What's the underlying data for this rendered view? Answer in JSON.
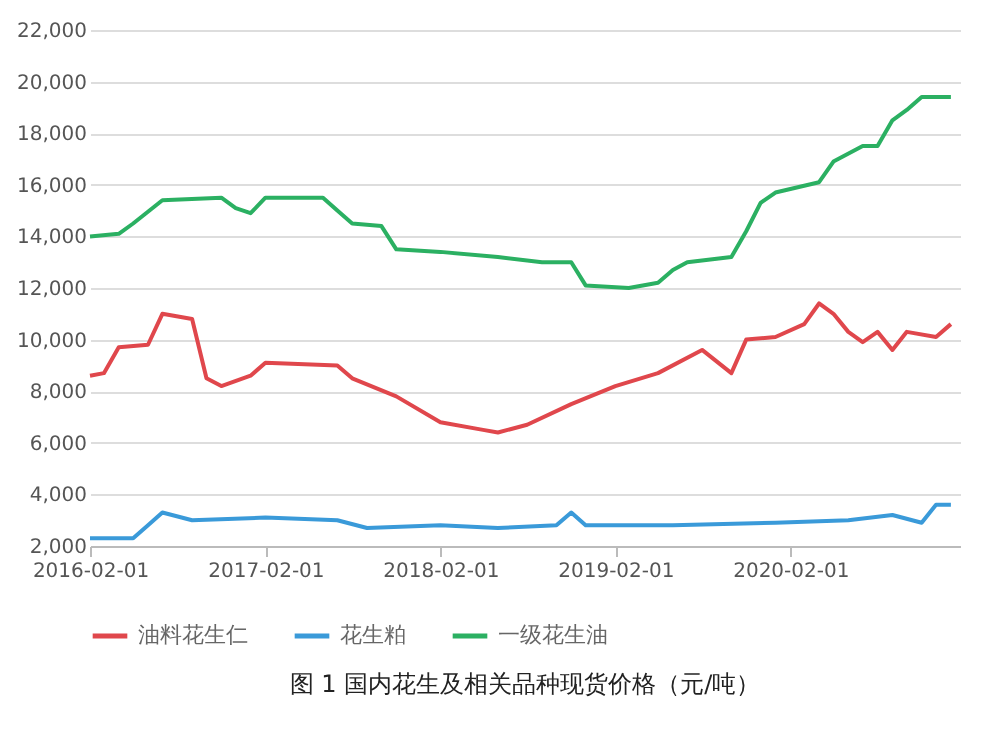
{
  "chart_data": {
    "type": "line",
    "annotations": [
      "图 1 国内花生及相关品种现货价格（元/吨）"
    ],
    "xlim": [
      "2016-02-01",
      "2021-01-20"
    ],
    "xticks": [
      "2016-02-01",
      "2017-02-01",
      "2018-02-01",
      "2019-02-01",
      "2020-02-01"
    ],
    "ylim": [
      2000,
      22000
    ],
    "yticks": [
      {
        "value": 2000,
        "label": "2,000"
      },
      {
        "value": 4000,
        "label": "4,000"
      },
      {
        "value": 6000,
        "label": "6,000"
      },
      {
        "value": 8000,
        "label": "8,000"
      },
      {
        "value": 10000,
        "label": "10,000"
      },
      {
        "value": 12000,
        "label": "12,000"
      },
      {
        "value": 14000,
        "label": "14,000"
      },
      {
        "value": 16000,
        "label": "16,000"
      },
      {
        "value": 18000,
        "label": "18,000"
      },
      {
        "value": 20000,
        "label": "20,000"
      },
      {
        "value": 22000,
        "label": "22,000"
      }
    ],
    "grid": "y",
    "legend": "bottom",
    "line_style": "solid",
    "marker": "none",
    "series": [
      {
        "name": "油料花生仁",
        "color": "#e0474c",
        "x": [
          "2016-02",
          "2016-03",
          "2016-04",
          "2016-06",
          "2016-07",
          "2016-09",
          "2016-10",
          "2016-11",
          "2017-01",
          "2017-02",
          "2017-07",
          "2017-08",
          "2017-11",
          "2018-02",
          "2018-05",
          "2018-06",
          "2018-08",
          "2018-11",
          "2019-02",
          "2019-05",
          "2019-08",
          "2019-10",
          "2019-11",
          "2020-01",
          "2020-03",
          "2020-04",
          "2020-05",
          "2020-06",
          "2020-07",
          "2020-08",
          "2020-09",
          "2020-10",
          "2020-12",
          "2021-01"
        ],
        "values": [
          8600,
          8700,
          9700,
          9800,
          11000,
          10800,
          8500,
          8200,
          8600,
          9100,
          9000,
          8500,
          7800,
          6800,
          6500,
          6400,
          6700,
          7500,
          8200,
          8700,
          9600,
          8700,
          10000,
          10100,
          10600,
          11400,
          11000,
          10300,
          9900,
          10300,
          9600,
          10300,
          10100,
          10600
        ]
      },
      {
        "name": "花生粕",
        "color": "#3a9ad9",
        "x": [
          "2016-02",
          "2016-05",
          "2016-06",
          "2016-07",
          "2016-09",
          "2017-02",
          "2017-07",
          "2017-09",
          "2018-02",
          "2018-06",
          "2018-10",
          "2018-11",
          "2018-12",
          "2019-06",
          "2020-01",
          "2020-06",
          "2020-09",
          "2020-11",
          "2020-12",
          "2021-01"
        ],
        "values": [
          2300,
          2300,
          2800,
          3300,
          3000,
          3100,
          3000,
          2700,
          2800,
          2700,
          2800,
          3300,
          2800,
          2800,
          2900,
          3000,
          3200,
          2900,
          3600,
          3600
        ]
      },
      {
        "name": "一级花生油",
        "color": "#2bb062",
        "x": [
          "2016-02",
          "2016-04",
          "2016-05",
          "2016-07",
          "2016-11",
          "2016-12",
          "2017-01",
          "2017-02",
          "2017-06",
          "2017-07",
          "2017-08",
          "2017-10",
          "2017-11",
          "2018-02",
          "2018-06",
          "2018-09",
          "2018-11",
          "2018-12",
          "2019-03",
          "2019-05",
          "2019-06",
          "2019-07",
          "2019-10",
          "2019-11",
          "2019-12",
          "2020-01",
          "2020-04",
          "2020-05",
          "2020-07",
          "2020-08",
          "2020-09",
          "2020-10",
          "2020-11",
          "2021-01"
        ],
        "values": [
          14000,
          14100,
          14500,
          15400,
          15500,
          15100,
          14900,
          15500,
          15500,
          15000,
          14500,
          14400,
          13500,
          13400,
          13200,
          13000,
          13000,
          12100,
          12000,
          12200,
          12700,
          13000,
          13200,
          14200,
          15300,
          15700,
          16100,
          16900,
          17500,
          17500,
          18500,
          18900,
          19400,
          19400
        ]
      }
    ]
  }
}
